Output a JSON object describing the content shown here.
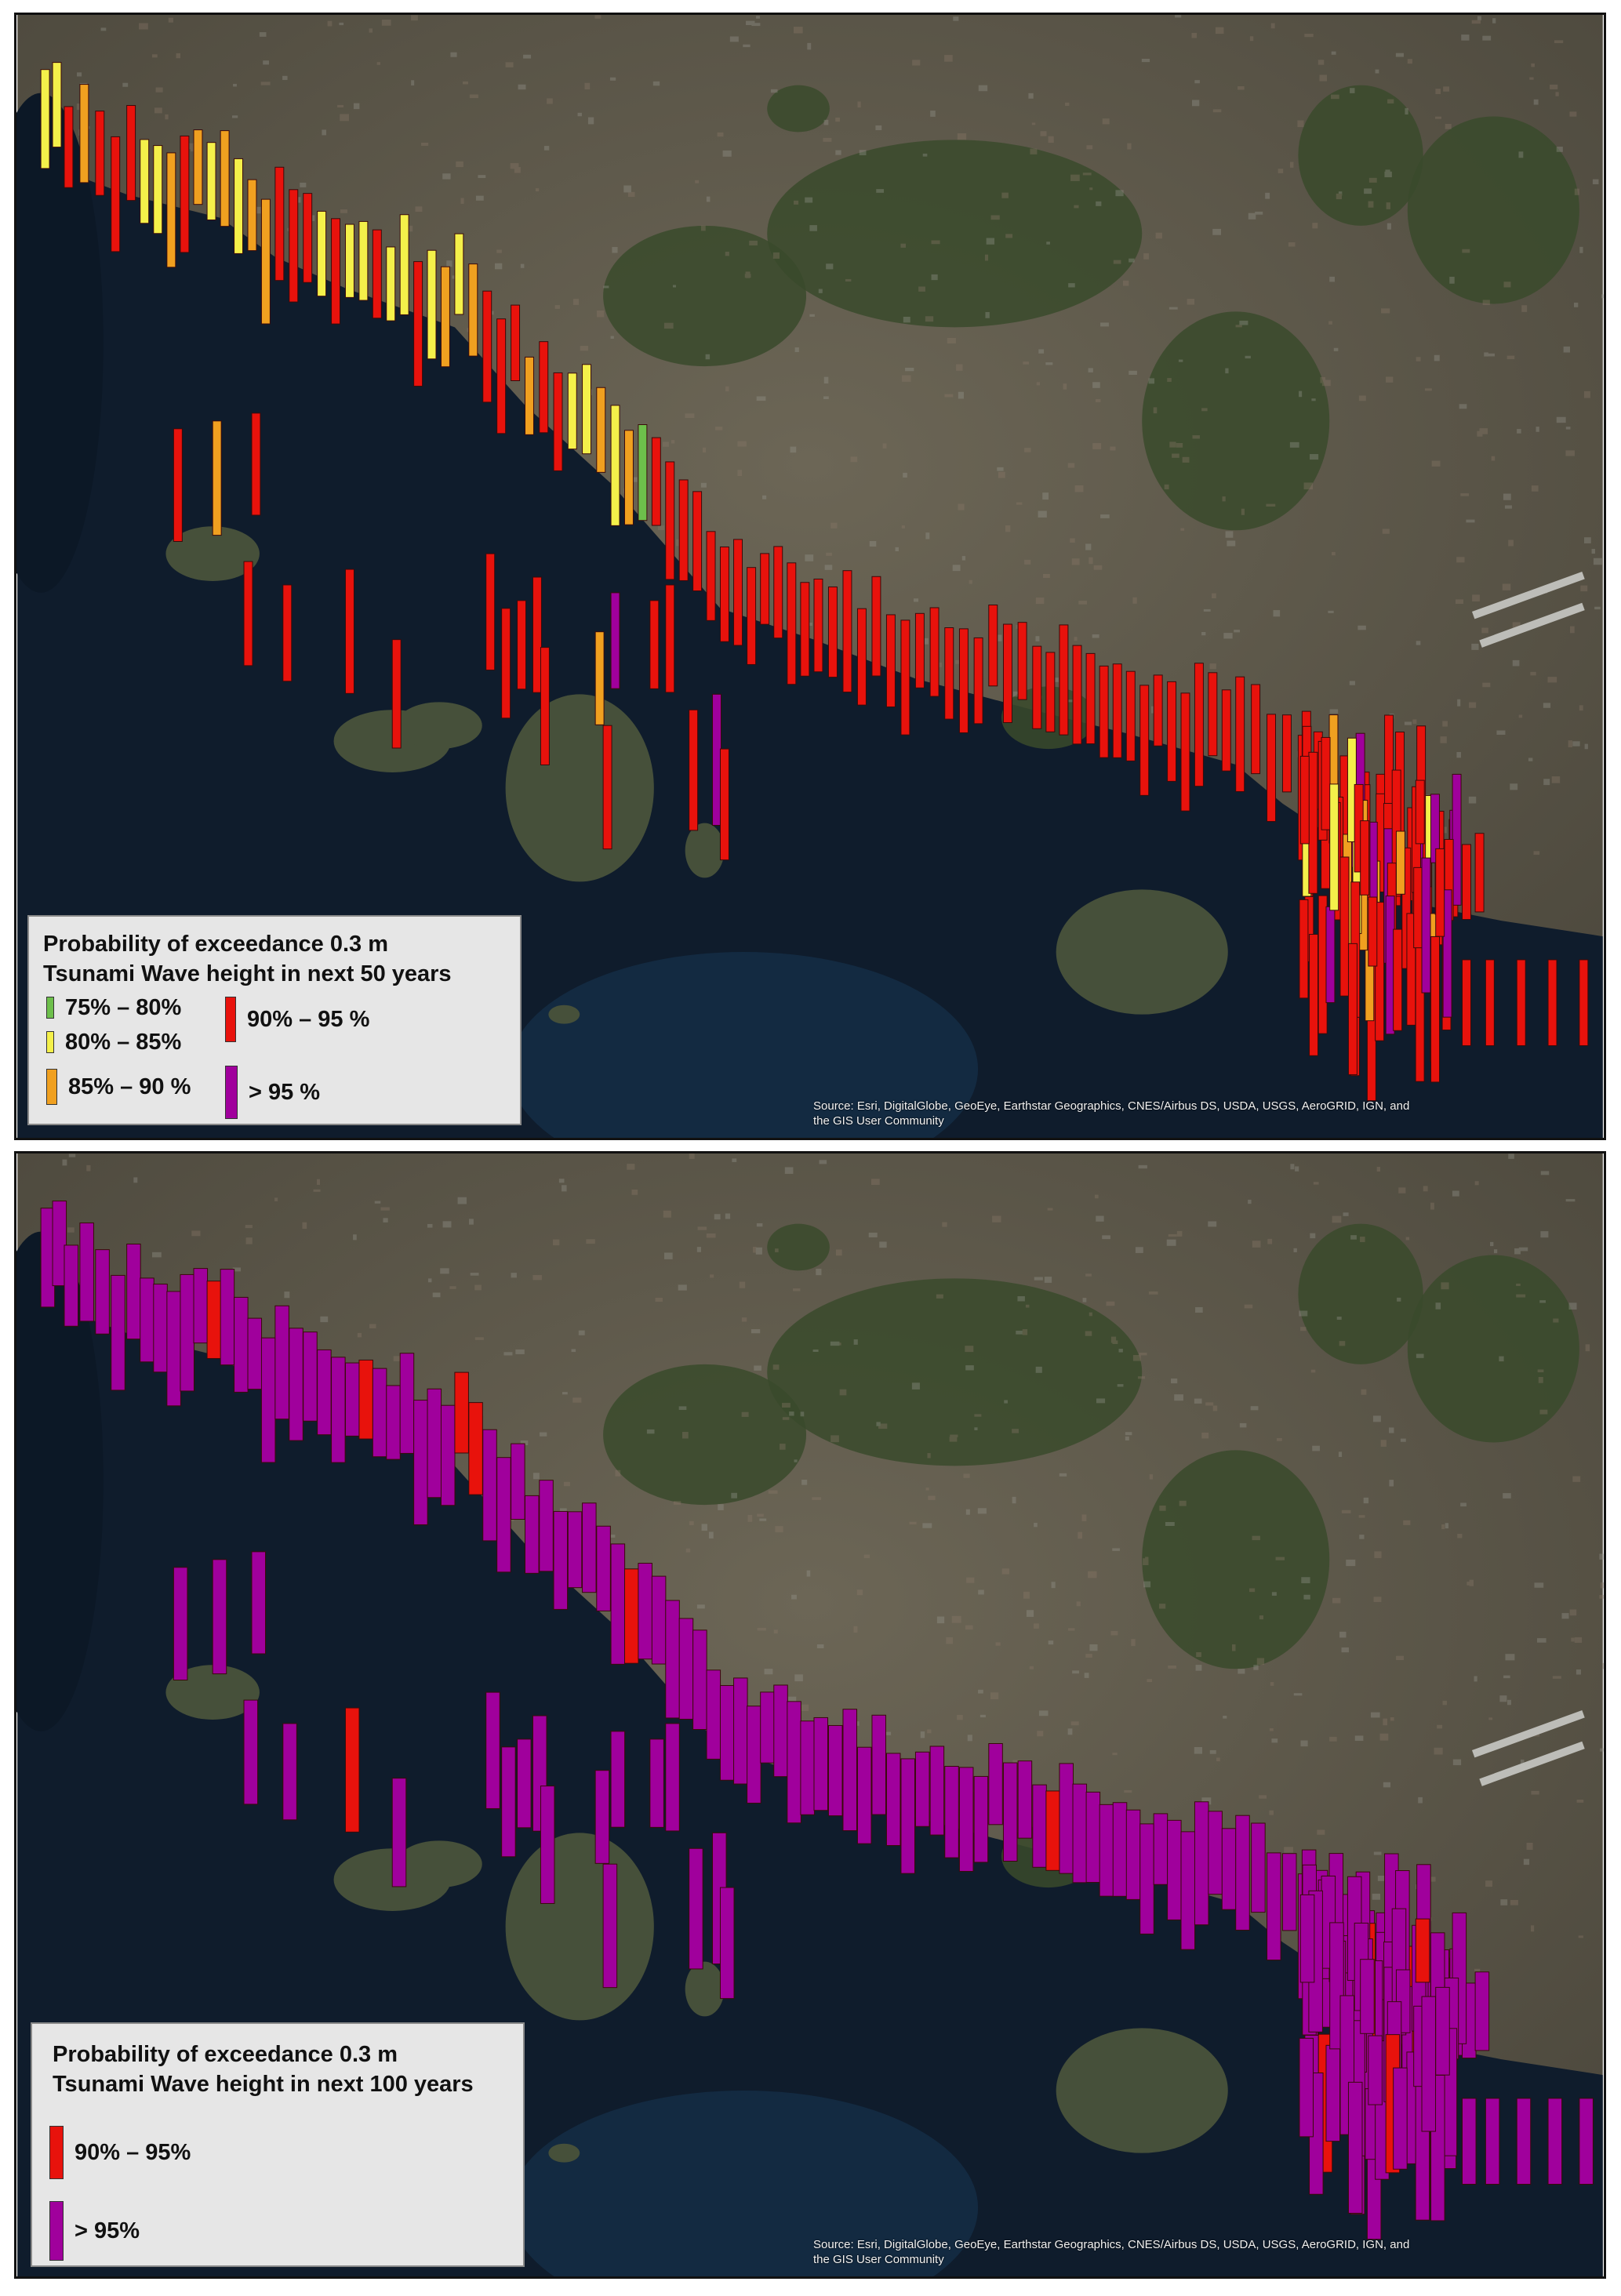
{
  "colors": {
    "p75_80": "#6dbf4b",
    "p80_85": "#f4f04a",
    "p85_90": "#f0a020",
    "p90_95": "#e8120c",
    "gt95": "#a0009c",
    "sea": "#0f1c2c",
    "land": "#5a5546"
  },
  "panels": [
    {
      "id": "top",
      "period_years": 50,
      "legend": {
        "title_line1": "Probability of exceedance 0.3 m",
        "title_line2": "Tsunami Wave  height in next 50 years",
        "items": [
          {
            "label": "75% – 80%",
            "color": "#6dbf4b"
          },
          {
            "label": "80% – 85%",
            "color": "#f4f04a"
          },
          {
            "label": "85% – 90 %",
            "color": "#f0a020"
          },
          {
            "label": "90% – 95 %",
            "color": "#e8120c"
          },
          {
            "label": "> 95 %",
            "color": "#a0009c"
          }
        ]
      },
      "source_line1": "Source: Esri, DigitalGlobe, GeoEye, Earthstar Geographics, CNES/Airbus DS, USDA, USGS, AeroGRID, IGN, and",
      "source_line2": "the GIS User Community"
    },
    {
      "id": "bottom",
      "period_years": 100,
      "legend": {
        "title_line1": "Probability of exceedance 0.3 m",
        "title_line2": "Tsunami Wave  height in next 100 years",
        "items": [
          {
            "label": "90% – 95%",
            "color": "#e8120c"
          },
          {
            "label": "> 95%",
            "color": "#a0009c"
          }
        ]
      },
      "source_line1": "Source: Esri, DigitalGlobe, GeoEye, Earthstar Geographics, CNES/Airbus DS, USDA, USGS, AeroGRID, IGN, and",
      "source_line2": "the GIS User Community"
    }
  ]
}
